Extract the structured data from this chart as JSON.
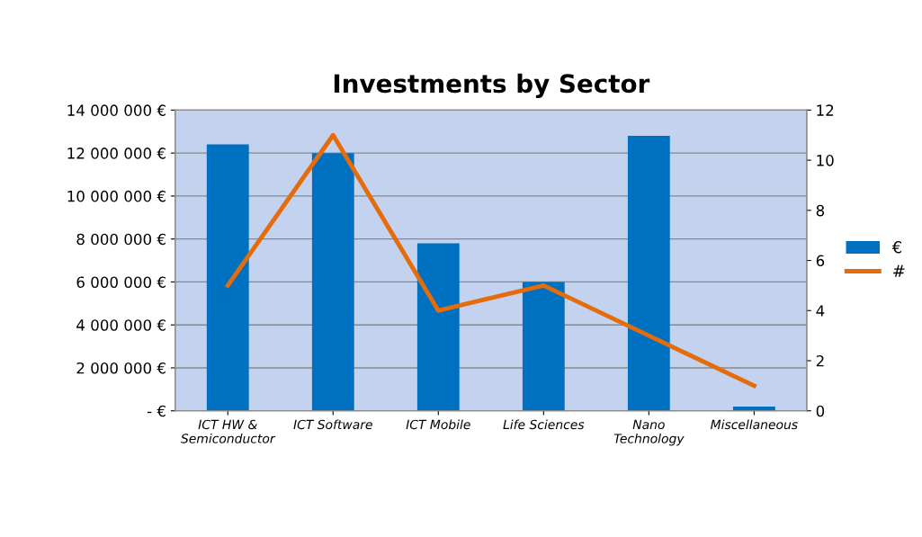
{
  "chart_data": {
    "type": "bar",
    "title": "Investments by Sector",
    "categories": [
      "ICT HW &\nSemiconductor",
      "ICT Software",
      "ICT Mobile",
      "Life Sciences",
      "Nano\nTechnology",
      "Miscellaneous"
    ],
    "series": [
      {
        "name": "€",
        "color": "#0070c0",
        "values": [
          12400000,
          12000000,
          7800000,
          6000000,
          12800000,
          200000
        ]
      },
      {
        "name": "#",
        "color": "#e46c0a",
        "type": "line",
        "axis": "y2",
        "values": [
          5,
          11,
          4,
          5,
          3,
          1
        ]
      }
    ],
    "ylim": [
      0,
      14000000
    ],
    "yticks": [
      {
        "value": 0,
        "label": "- €"
      },
      {
        "value": 2000000,
        "label": "2 000 000 €"
      },
      {
        "value": 4000000,
        "label": "4 000 000 €"
      },
      {
        "value": 6000000,
        "label": "6 000 000 €"
      },
      {
        "value": 8000000,
        "label": "8 000 000 €"
      },
      {
        "value": 10000000,
        "label": "10 000 000 €"
      },
      {
        "value": 12000000,
        "label": "12 000 000 €"
      },
      {
        "value": 14000000,
        "label": "14 000 000 €"
      }
    ],
    "y2lim": [
      0,
      12
    ],
    "y2ticks": [
      0,
      2,
      4,
      6,
      8,
      10,
      12
    ],
    "grid": "y",
    "legend": "right"
  }
}
